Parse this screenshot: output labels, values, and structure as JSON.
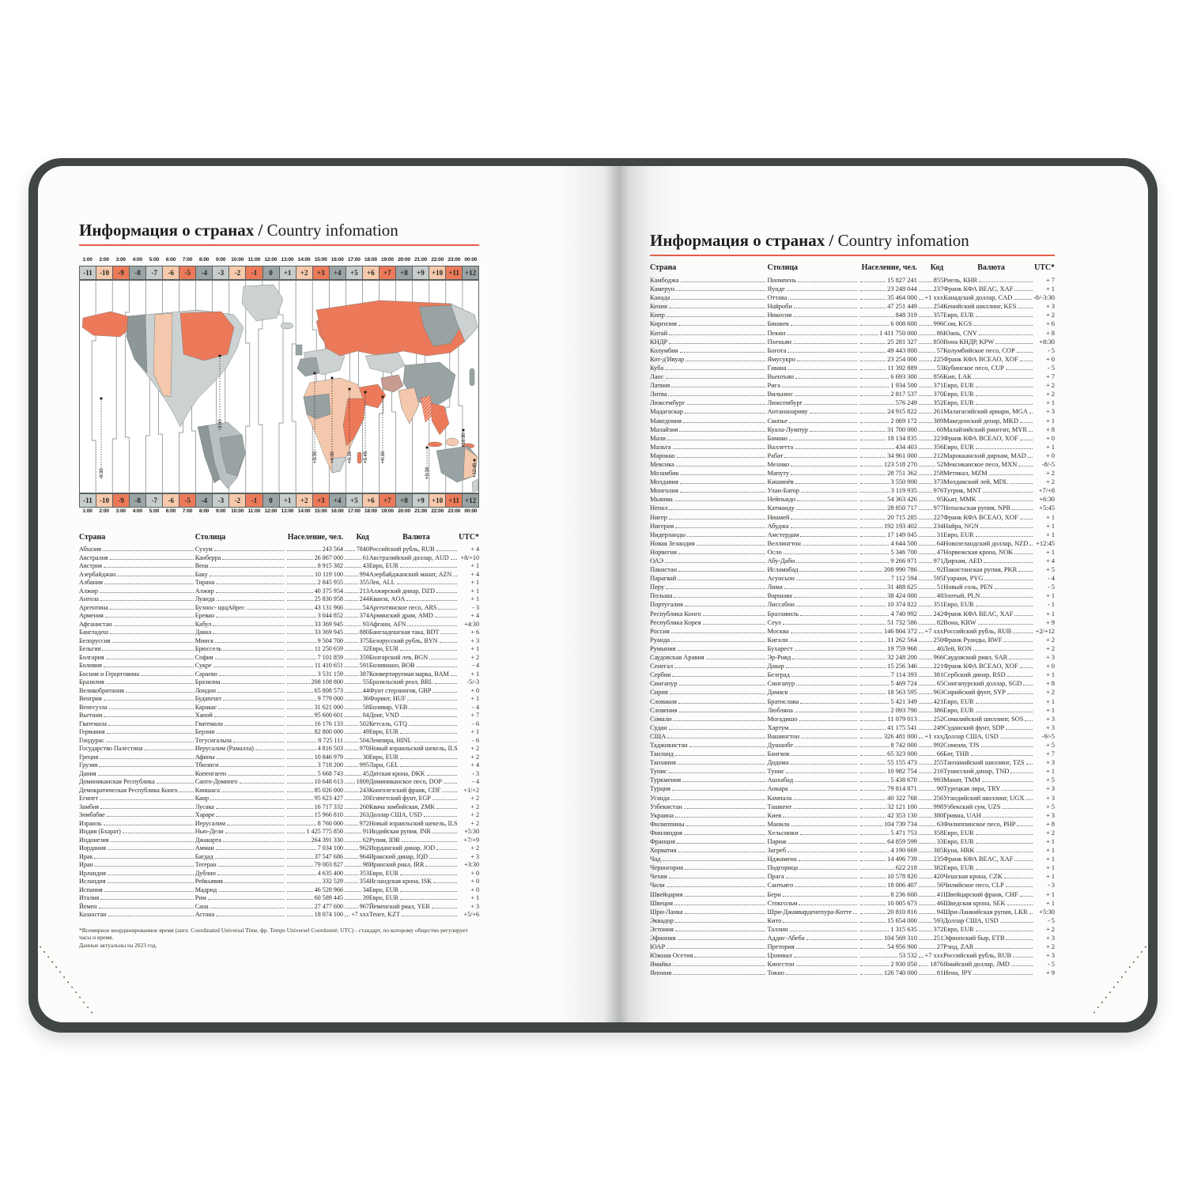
{
  "title": {
    "ru": "Информация о странах",
    "sep": " / ",
    "en": "Country infomation"
  },
  "colors": {
    "accent_underline": "#e55d48",
    "cover": "#3f4644",
    "offset_cycle": [
      "#c7cccd",
      "#f6c9ac",
      "#ec7a5a",
      "#9ba4a5"
    ],
    "map_salmon": "#ec7a5a",
    "map_peach": "#f4c8ac",
    "map_gray": "#9aa3a4",
    "map_light": "#ccd1d2"
  },
  "timezone_map": {
    "time_labels": [
      "1:00",
      "2:00",
      "3:00",
      "4:00",
      "5:00",
      "6:00",
      "7:00",
      "8:00",
      "9:00",
      "10:00",
      "11:00",
      "12:00",
      "13:00",
      "14:00",
      "15:00",
      "16:00",
      "17:00",
      "18:00",
      "19:00",
      "20:00",
      "21:00",
      "22:00",
      "23:00",
      "00:00"
    ],
    "offset_labels": [
      "-11",
      "-10",
      "-9",
      "-8",
      "-7",
      "-6",
      "-5",
      "-4",
      "-3",
      "-2",
      "-1",
      "0",
      "+1",
      "+2",
      "+3",
      "+4",
      "+5",
      "+6",
      "+7",
      "+8",
      "+9",
      "+10",
      "+11",
      "+12"
    ],
    "fractional_labels": [
      "-9:30",
      "-3:30",
      "+3:30",
      "+4:30",
      "+5:30",
      "+5:45",
      "+6:30",
      "+9:30",
      "+10:30",
      "+12:45"
    ]
  },
  "headers": {
    "country": "Страна",
    "capital": "Столица",
    "population": "Население, чел.",
    "code": "Код",
    "currency": "Валюта",
    "utc": "UTC*"
  },
  "footnote": {
    "line1": "*Всемирное координированное время (англ. Coordinated Universal Time, фр. Temps Universel Coordonné; UTC) - стандарт, по которому общество регулирует часы и время.",
    "line2": "Данные актуальны на 2023 год."
  },
  "left_table_rows": [
    [
      "Абхазия",
      "Сухум",
      "243 564",
      "7840",
      "Российский рубль, RUB",
      "+ 4"
    ],
    [
      "Австралия",
      "Канберра",
      "26 867 000",
      "61",
      "Австралийский доллар, AUD",
      "+8/+10"
    ],
    [
      "Австрия",
      "Вена",
      "8 915 382",
      "43",
      "Евро, EUR",
      "+ 1"
    ],
    [
      "Азербайджан",
      "Баку",
      "10 119 100",
      "994",
      "Азербайджанский манат, AZN",
      "+ 4"
    ],
    [
      "Албания",
      "Тирана",
      "2 845 955",
      "355",
      "Лек, ALL",
      "+ 1"
    ],
    [
      "Алжир",
      "Алжир",
      "40 375 954",
      "213",
      "Алжирский динар, DZD",
      "+ 1"
    ],
    [
      "Ангола",
      "Луанда",
      "25 830 958",
      "244",
      "Кванза, AOA",
      "+ 1"
    ],
    [
      "Аргентина",
      "Буэнос- щщАйрес",
      "43 131 966",
      "54",
      "Аргентинское песо, ARS",
      "- 3"
    ],
    [
      "Армения",
      "Ереван",
      "3 044 852",
      "374",
      "Армянский драм, AMD",
      "+ 4"
    ],
    [
      "Афганистан",
      "Кабул",
      "33 369 945",
      "93",
      "Афгани, AFN",
      "+4:30"
    ],
    [
      "Бангладеш",
      "Дакка",
      "33 369 945",
      "880",
      "Бангладешская така, BDT",
      "+ 6"
    ],
    [
      "Белоруссия",
      "Минск",
      "9 504 700",
      "375",
      "Белорусский рубль, BYN",
      "+ 3"
    ],
    [
      "Бельгия",
      "Брюссель",
      "11 250 659",
      "32",
      "Евро, EUR",
      "+ 1"
    ],
    [
      "Болгария",
      "София",
      "7 101 859",
      "359",
      "Болгарский лев, BGN",
      "+ 2"
    ],
    [
      "Боливия",
      "Сукре",
      "11 410 651",
      "591",
      "Боливиано, BOB",
      "- 4"
    ],
    [
      "Босния и Герцеговина",
      "Сараево",
      "3 531 159",
      "387",
      "Конвертируемая марка, BAM",
      "+ 1"
    ],
    [
      "Бразилия",
      "Бразилиа",
      "208 108 800",
      "55",
      "Бразильский реал, BRL",
      "-5/-3"
    ],
    [
      "Великобритания",
      "Лондон",
      "65 808 573",
      "44",
      "Фунт стерлингов, GBP",
      "+ 0"
    ],
    [
      "Венгрия",
      "Будапешт",
      "9 779 000",
      "36",
      "Форинт, HUF",
      "+ 1"
    ],
    [
      "Венесуэла",
      "Каракас",
      "31 621 000",
      "58",
      "Боливар, VEB",
      "- 4"
    ],
    [
      "Вьетнам",
      "Ханой",
      "95 600 601",
      "84",
      "Донг, VND",
      "+ 7"
    ],
    [
      "Гватемала",
      "Гватемала",
      "16 176 133",
      "502",
      "Кетсаль, GTQ",
      "- 6"
    ],
    [
      "Германия",
      "Берлин",
      "82 800 000",
      "49",
      "Евро, EUR",
      "+ 1"
    ],
    [
      "Гондурас",
      "Тегусигальпа",
      "8 725 111",
      "504",
      "Лемпира, HINL",
      "- 6"
    ],
    [
      "Государство Палестина",
      "Иерусалим (Рамалла)",
      "4 816 503",
      "970",
      "Новый израильский шекель, ILS",
      "+ 2"
    ],
    [
      "Греция",
      "Афины",
      "10 846 979",
      "30",
      "Евро, EUR",
      "+ 2"
    ],
    [
      "Грузия",
      "Тбилиси",
      "3 718 200",
      "995",
      "Лари, GEL",
      "+ 4"
    ],
    [
      "Дания",
      "Копенгаген",
      "5 668 743",
      "45",
      "Датская крона, DKK",
      "- 3"
    ],
    [
      "Доминиканская Республика",
      "Санто-Доминго",
      "10 648 613",
      "1809",
      "Доминиканское песо, DOP",
      "- 4"
    ],
    [
      "Демократическая Республика Конго",
      "Киншаса",
      "85 026 000",
      "243",
      "Конголезский франк, CDF",
      "+1/+2"
    ],
    [
      "Египет",
      "Каир",
      "95 623 427",
      "20",
      "Египетский фунт, EGP",
      "+ 2"
    ],
    [
      "Замбия",
      "Лусака",
      "16 717 332",
      "260",
      "Квача замбийская, ZMK",
      "+ 2"
    ],
    [
      "Зимбабве",
      "Хараре",
      "15 966 810",
      "263",
      "Доллар США, USD",
      "+ 2"
    ],
    [
      "Израиль",
      "Иерусалим",
      "8 760 000",
      "972",
      "Новый израильский шекель, ILS",
      "+ 2"
    ],
    [
      "Индия (Бхарат)",
      "Нью-Дели",
      "1 425 775 850",
      "91",
      "Индийская рупия, INR",
      "+5:30"
    ],
    [
      "Индонезия",
      "Джакарта",
      "264 391 330",
      "62",
      "Рупия, IDR",
      "+7/+9"
    ],
    [
      "Иордания",
      "Амман",
      "7 034 100",
      "962",
      "Иорданский динар, JOD",
      "+ 2"
    ],
    [
      "Ирак",
      "Багдад",
      "37 547 686",
      "964",
      "Иракский динар, IQD",
      "+ 3"
    ],
    [
      "Иран",
      "Тегеран",
      "79 003 827",
      "98",
      "Иранский риал, IRR",
      "+3:30"
    ],
    [
      "Ирландия",
      "Дублин",
      "4 635 400",
      "353",
      "Евро, EUR",
      "+ 0"
    ],
    [
      "Исландия",
      "Рейкьявик",
      "332 529",
      "354",
      "Исландская крона, ISK",
      "+ 0"
    ],
    [
      "Испания",
      "Мадрид",
      "46 528 966",
      "34",
      "Евро, EUR",
      "+ 0"
    ],
    [
      "Италия",
      "Рим",
      "60 589 445",
      "39",
      "Евро, EUR",
      "+ 1"
    ],
    [
      "Йемен",
      "Сана",
      "27 477 600",
      "967",
      "Йеменский риал, YER",
      "+ 3"
    ],
    [
      "Казахстан",
      "Астана",
      "18 074 100",
      "+7 xxx",
      "Тенге, KZT",
      "+5/+6"
    ]
  ],
  "right_table_rows": [
    [
      "Камбоджа",
      "Пномпень",
      "15 827 241",
      "855",
      "Риель, KHR",
      "+ 7"
    ],
    [
      "Камерун",
      "Яунде",
      "23 248 044",
      "237",
      "Франк КФА BEAC, XAF",
      "+ 1"
    ],
    [
      "Канада",
      "Оттава",
      "35 464 000",
      "+1 xxx",
      "Канадский доллар, CAD",
      "-8/-3:30"
    ],
    [
      "Кения",
      "Найроби",
      "47 251 449",
      "254",
      "Кенийский шиллинг, KES",
      "+ 3"
    ],
    [
      "Кипр",
      "Никосия",
      "848 319",
      "357",
      "Евро, EUR",
      "+ 2"
    ],
    [
      "Киргизия",
      "Бишкек",
      "6 008 600",
      "996",
      "Сом, KGS",
      "+ 6"
    ],
    [
      "Китай",
      "Пекин",
      "1 411 750 000",
      "86",
      "Юань, CNY",
      "+ 8"
    ],
    [
      "КНДР",
      "Пхеньян",
      "25 281 327",
      "850",
      "Вона КНДР, KPW",
      "+8:30"
    ],
    [
      "Колумбия",
      "Богота",
      "49 443 000",
      "57",
      "Колумбийское песо, COP",
      "- 5"
    ],
    [
      "Кот-д'Ивуар",
      "Ямусукро",
      "23 254 000",
      "225",
      "Франк КФА BCEAO, XOF",
      "+ 0"
    ],
    [
      "Куба",
      "Гавана",
      "11 392 889",
      "53",
      "Кубинское песо, CUP",
      "- 5"
    ],
    [
      "Лаос",
      "Вьентьян",
      "6 693 300",
      "856",
      "Кип, LAK",
      "+ 7"
    ],
    [
      "Латвия",
      "Рига",
      "1 934 500",
      "371",
      "Евро, EUR",
      "+ 2"
    ],
    [
      "Литва",
      "Вильнюс",
      "2 817 537",
      "370",
      "Евро, EUR",
      "+ 2"
    ],
    [
      "Люксембург",
      "Люксембург",
      "576 249",
      "352",
      "Евро, EUR",
      "+ 1"
    ],
    [
      "Мадагаскар",
      "Антананариву",
      "24 915 822",
      "261",
      "Малагасийский ариари, MGA",
      "+ 3"
    ],
    [
      "Македония",
      "Скопье",
      "2 069 172",
      "389",
      "Македонский денар, MKD",
      "+ 1"
    ],
    [
      "Малайзия",
      "Куала-Лумпур",
      "31 700 000",
      "60",
      "Малайзийский ринггит, MYR",
      "+ 8"
    ],
    [
      "Мали",
      "Бамако",
      "18 134 835",
      "223",
      "Франк КФА BCEAO, XOF",
      "+ 0"
    ],
    [
      "Мальта",
      "Валлетта",
      "434 403",
      "356",
      "Евро, EUR",
      "+ 1"
    ],
    [
      "Марокко",
      "Рабат",
      "34 961 000",
      "212",
      "Марокканский дирхам, MAD",
      "+ 0"
    ],
    [
      "Мексика",
      "Мехико",
      "123 518 270",
      "52",
      "Мексиканское песо, MXN",
      "-8/-5"
    ],
    [
      "Мозамбик",
      "Мапуту",
      "28 751 362",
      "258",
      "Метикал, MZM",
      "+ 2"
    ],
    [
      "Молдавия",
      "Кишинёв",
      "3 550 900",
      "373",
      "Молдавский лей, MDL",
      "+ 2"
    ],
    [
      "Монголия",
      "Улан-Батор",
      "3 119 935",
      "976",
      "Тугрик, MNT",
      "+7/+8"
    ],
    [
      "Мьянма",
      "Нейпьидо",
      "54 363 426",
      "95",
      "Кьят, MMK",
      "+6:30"
    ],
    [
      "Непал",
      "Катманду",
      "28 850 717",
      "977",
      "Непальская рупия, NPR",
      "+5:45"
    ],
    [
      "Нигер",
      "Ниамей",
      "20 715 285",
      "227",
      "Франк КФА BCEAO, XOF",
      "+ 1"
    ],
    [
      "Нигерия",
      "Абуджа",
      "192 193 402",
      "234",
      "Найра, NGN",
      "+ 1"
    ],
    [
      "Нидерланды",
      "Амстердам",
      "17 149 045",
      "31",
      "Евро, EUR",
      "+ 1"
    ],
    [
      "Новая Зеландия",
      "Веллингтон",
      "4 644 500",
      "64",
      "Новозеландский доллар, NZD",
      "+12:45"
    ],
    [
      "Норвегия",
      "Осло",
      "5 346 700",
      "47",
      "Норвежская крона, NOK",
      "+ 1"
    ],
    [
      "ОАЭ",
      "Абу-Даби",
      "9 266 971",
      "971",
      "Дирхам, AED",
      "+ 4"
    ],
    [
      "Пакистан",
      "Исламабад",
      "208 990 786",
      "92",
      "Пакистанская рупия, PKR",
      "+ 5"
    ],
    [
      "Парагвай",
      "Асунсьон",
      "7 112 594",
      "595",
      "Гуарани, PYG",
      "- 4"
    ],
    [
      "Перу",
      "Лима",
      "31 488 625",
      "51",
      "Новый соль, PEN",
      "- 5"
    ],
    [
      "Польша",
      "Варшава",
      "38 424 000",
      "48",
      "Злотый, PLN",
      "+ 1"
    ],
    [
      "Португалия",
      "Лиссабон",
      "10 374 822",
      "351",
      "Евро, EUR",
      "- 1"
    ],
    [
      "Республика Конго",
      "Браззавиль",
      "4 740 992",
      "242",
      "Франк КФА BEAC, XAF",
      "+ 1"
    ],
    [
      "Республика Корея",
      "Сеул",
      "51 732 586",
      "82",
      "Вона, KRW",
      "+ 9"
    ],
    [
      "Россия",
      "Москва",
      "146 804 372",
      "+7 xxx",
      "Российский рубль, RUB",
      "+2/+12"
    ],
    [
      "Руанда",
      "Кигали",
      "11 262 564",
      "250",
      "Франк Руанды, RWF",
      "+ 2"
    ],
    [
      "Румыния",
      "Бухарест",
      "19 759 968",
      "40",
      "Лей, RON",
      "+ 2"
    ],
    [
      "Саудовская Аравия",
      "Эр-Рияд",
      "32 248 200",
      "966",
      "Саудовский риял, SAR",
      "+ 3"
    ],
    [
      "Сенегал",
      "Дакар",
      "15 256 346",
      "221",
      "Франк КФА BCEAO, XOF",
      "+ 0"
    ],
    [
      "Сербия",
      "Белград",
      "7 114 393",
      "381",
      "Сербский динар, RSD",
      "+ 1"
    ],
    [
      "Сингапур",
      "Сингапур",
      "5 469 724",
      "65",
      "Сингапурский доллар, SGD",
      "+ 8"
    ],
    [
      "Сирия",
      "Дамаск",
      "18 563 595",
      "963",
      "Сирийский фунт, SYP",
      "+ 2"
    ],
    [
      "Словакия",
      "Братислава",
      "5 421 349",
      "421",
      "Евро, EUR",
      "+ 1"
    ],
    [
      "Словения",
      "Любляна",
      "2 093 790",
      "386",
      "Евро, EUR",
      "+ 1"
    ],
    [
      "Сомали",
      "Могадишо",
      "11 079 013",
      "252",
      "Сомалийский шиллинг, SOS",
      "+ 3"
    ],
    [
      "Судан",
      "Хартум",
      "41 175 541",
      "249",
      "Суданский фунт, SDP",
      "+ 3"
    ],
    [
      "США",
      "Вашингтон",
      "326 481 000",
      "+1 xxx",
      "Доллар США, USD",
      "-9/-5"
    ],
    [
      "Таджикистан",
      "Душанбе",
      "8 742 000",
      "992",
      "Сомони, TJS",
      "+ 5"
    ],
    [
      "Таиланд",
      "Бангкок",
      "65 323 000",
      "66",
      "Бат, THB",
      "+ 7"
    ],
    [
      "Танзания",
      "Додома",
      "55 155 473",
      "255",
      "Танзанийский шиллинг, TZS",
      "+ 3"
    ],
    [
      "Тунис",
      "Тунис",
      "10 982 754",
      "216",
      "Тунисский динар, TND",
      "+ 1"
    ],
    [
      "Туркмения",
      "Ашхабад",
      "5 438 670",
      "993",
      "Манат, TMM",
      "+ 5"
    ],
    [
      "Турция",
      "Анкара",
      "79 814 871",
      "90",
      "Турецкая лира, TRY",
      "+ 3"
    ],
    [
      "Уганда",
      "Кампала",
      "40 322 768",
      "256",
      "Угандийский шиллинг, UGX",
      "+ 3"
    ],
    [
      "Узбекистан",
      "Ташкент",
      "32 121 100",
      "998",
      "Узбекский сум, UZS",
      "+ 5"
    ],
    [
      "Украина",
      "Киев",
      "42 353 130",
      "380",
      "Гривна, UAH",
      "+ 3"
    ],
    [
      "Филиппины",
      "Манила",
      "104 739 734",
      "63",
      "Филиппинское песо, PHP",
      "+ 8"
    ],
    [
      "Финляндия",
      "Хельсинки",
      "5 471 753",
      "358",
      "Евро, EUR",
      "+ 2"
    ],
    [
      "Франция",
      "Париж",
      "64 859 599",
      "33",
      "Евро, EUR",
      "+ 1"
    ],
    [
      "Хорватия",
      "Загреб",
      "4 190 669",
      "385",
      "Куна, HRK",
      "+ 1"
    ],
    [
      "Чад",
      "Нджамена",
      "14 496 739",
      "235",
      "Франк КФА BEAC, XAF",
      "+ 1"
    ],
    [
      "Черногория",
      "Подгорица",
      "622 218",
      "382",
      "Евро, EUR",
      "+ 1"
    ],
    [
      "Чехия",
      "Прага",
      "10 578 820",
      "420",
      "Чешская крона, CZK",
      "+ 1"
    ],
    [
      "Чили",
      "Сантьяго",
      "18 006 407",
      "56",
      "Чилийское песо, CLP",
      "- 3"
    ],
    [
      "Швейцария",
      "Берн",
      "8 236 600",
      "41",
      "Швейцарский франк, CHF",
      "+ 1"
    ],
    [
      "Швеция",
      "Стокгольм",
      "10 005 673",
      "46",
      "Шведская крона, SEK",
      "+ 1"
    ],
    [
      "Шри-Ланка",
      "Шри-Джаяварденепура-Котте",
      "20 810 816",
      "94",
      "Шри-Ланкийская рупия, LKR",
      "+5:30"
    ],
    [
      "Эквадор",
      "Кито",
      "15 654 000",
      "593",
      "Доллар США, USD",
      "- 5"
    ],
    [
      "Эстония",
      "Таллин",
      "1 315 635",
      "372",
      "Евро, EUR",
      "+ 2"
    ],
    [
      "Эфиопия",
      "Аддис-Абеба",
      "104 569 310",
      "251",
      "Эфиопский быр, ETB",
      "+ 3"
    ],
    [
      "ЮАР",
      "Претория",
      "54 956 900",
      "27",
      "Рэнд, ZAR",
      "+ 2"
    ],
    [
      "Южная Осетия",
      "Цхинвал",
      "53 532",
      "+7 xxx",
      "Российский рубль, RUB",
      "+ 3"
    ],
    [
      "Ямайка",
      "Кингстон",
      "2 930 050",
      "1876",
      "Ямайский доллар, JMD",
      "- 5"
    ],
    [
      "Япония",
      "Токио",
      "126 740 000",
      "81",
      "Иена, JPY",
      "+ 9"
    ]
  ]
}
